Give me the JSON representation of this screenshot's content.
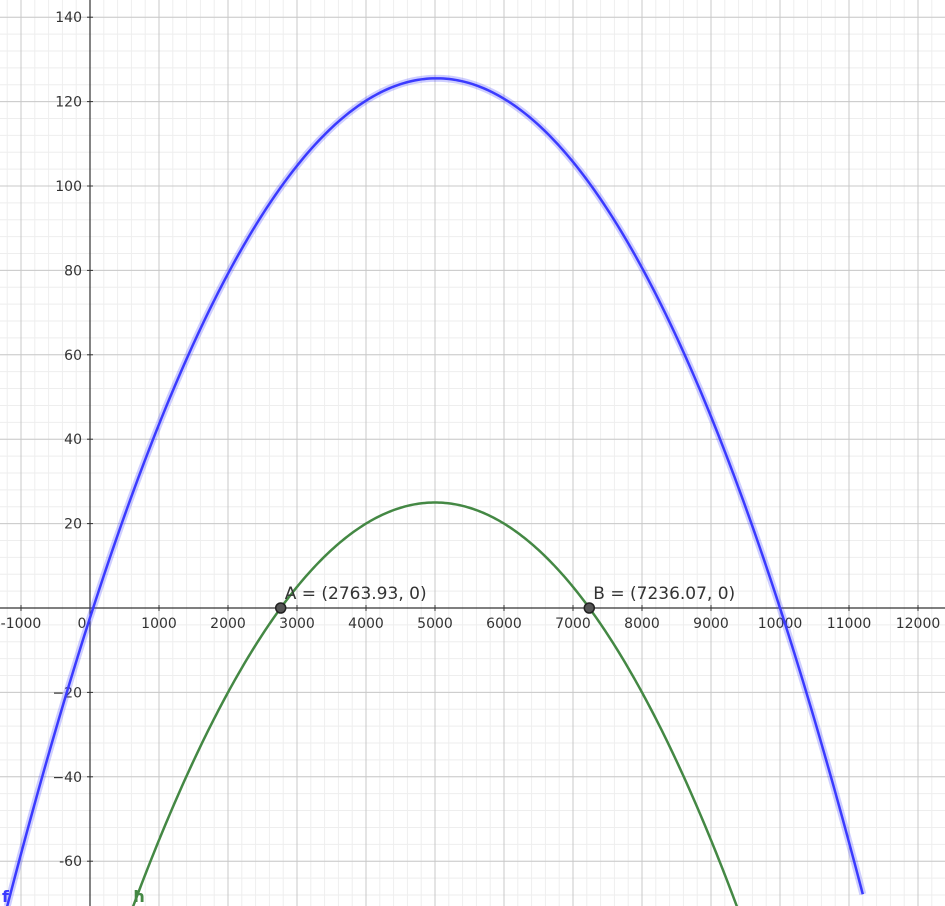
{
  "chart_data": {
    "type": "line",
    "title": "",
    "xlabel": "",
    "ylabel": "",
    "xlim": [
      -1300,
      12400
    ],
    "ylim": [
      -70.8,
      143.5
    ],
    "grid": true,
    "x_ticks": [
      -1000,
      0,
      1000,
      2000,
      3000,
      4000,
      5000,
      6000,
      7000,
      8000,
      9000,
      10000,
      11000,
      12000
    ],
    "x_tick_labels": [
      "-1000",
      "0",
      "1000",
      "2000",
      "3000",
      "4000",
      "5000",
      "6000",
      "7000",
      "8000",
      "9000",
      "10000",
      "11000",
      "12000"
    ],
    "y_ticks": [
      -60,
      -40,
      -20,
      20,
      40,
      60,
      80,
      100,
      120,
      140
    ],
    "y_tick_labels": [
      "-60",
      "−40",
      "−20",
      "20",
      "40",
      "60",
      "80",
      "100",
      "120",
      "140"
    ],
    "series": [
      {
        "name": "f",
        "color": "#3a3aff",
        "x": [
          -1200,
          -1000,
          0,
          1000,
          2000,
          3000,
          4000,
          5000,
          6000,
          7000,
          8000,
          9000,
          10000,
          11000,
          11200
        ],
        "y": [
          -76.8,
          -55,
          0,
          45,
          80,
          105,
          120,
          125,
          120,
          105,
          80,
          45,
          0,
          -55,
          -67.2
        ]
      },
      {
        "name": "h",
        "color": "#448844",
        "x": [
          600,
          1000,
          2000,
          3000,
          4000,
          5000,
          6000,
          7000,
          8000,
          9000,
          9400
        ],
        "y": [
          -71.8,
          -55,
          -20,
          5,
          20,
          25,
          20,
          5,
          -20,
          -55,
          -71.8
        ]
      }
    ],
    "points": [
      {
        "label": "A = (2763.93, 0)",
        "x": 2763.93,
        "y": 0
      },
      {
        "label": "B = (7236.07, 0)",
        "x": 7236.07,
        "y": 0
      }
    ]
  }
}
